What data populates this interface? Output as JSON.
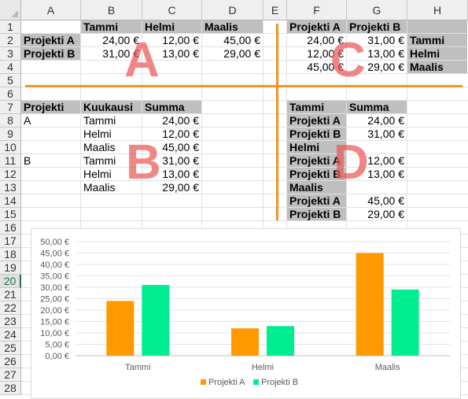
{
  "columns": [
    "A",
    "B",
    "C",
    "D",
    "E",
    "F",
    "G",
    "H"
  ],
  "rows": [
    "1",
    "2",
    "3",
    "4",
    "5",
    "6",
    "7",
    "8",
    "9",
    "10",
    "11",
    "12",
    "13",
    "14",
    "15",
    "16",
    "17",
    "18",
    "19",
    "20",
    "21",
    "22",
    "23",
    "24",
    "25",
    "26",
    "27",
    "28"
  ],
  "active_row": "20",
  "cells": [
    {
      "ref": "B1",
      "text": "Tammi",
      "bold": true,
      "gray": true
    },
    {
      "ref": "C1",
      "text": "Helmi",
      "bold": true,
      "gray": true
    },
    {
      "ref": "D1",
      "text": "Maalis",
      "bold": true,
      "gray": true
    },
    {
      "ref": "A2",
      "text": "Projekti A",
      "bold": true,
      "gray": true
    },
    {
      "ref": "B2",
      "text": "24,00 €",
      "right": true
    },
    {
      "ref": "C2",
      "text": "12,00 €",
      "right": true
    },
    {
      "ref": "D2",
      "text": "45,00 €",
      "right": true
    },
    {
      "ref": "A3",
      "text": "Projekti B",
      "bold": true,
      "gray": true
    },
    {
      "ref": "B3",
      "text": "31,00 €",
      "right": true
    },
    {
      "ref": "C3",
      "text": "13,00 €",
      "right": true
    },
    {
      "ref": "D3",
      "text": "29,00 €",
      "right": true
    },
    {
      "ref": "F1",
      "text": "Projekti A",
      "bold": true,
      "gray": true
    },
    {
      "ref": "G1",
      "text": "Projekti B",
      "bold": true,
      "gray": true
    },
    {
      "ref": "H1",
      "text": "",
      "gray": true
    },
    {
      "ref": "F2",
      "text": "24,00 €",
      "right": true
    },
    {
      "ref": "G2",
      "text": "31,00 €",
      "right": true
    },
    {
      "ref": "H2",
      "text": "Tammi",
      "bold": true,
      "gray": true
    },
    {
      "ref": "F3",
      "text": "12,00 €",
      "right": true
    },
    {
      "ref": "G3",
      "text": "13,00 €",
      "right": true
    },
    {
      "ref": "H3",
      "text": "Helmi",
      "bold": true,
      "gray": true
    },
    {
      "ref": "F4",
      "text": "45,00 €",
      "right": true
    },
    {
      "ref": "G4",
      "text": "29,00 €",
      "right": true
    },
    {
      "ref": "H4",
      "text": "Maalis",
      "bold": true,
      "gray": true
    },
    {
      "ref": "A7",
      "text": "Projekti",
      "bold": true,
      "gray": true
    },
    {
      "ref": "B7",
      "text": "Kuukausi",
      "bold": true,
      "gray": true
    },
    {
      "ref": "C7",
      "text": "Summa",
      "bold": true,
      "gray": true
    },
    {
      "ref": "A8",
      "text": "A"
    },
    {
      "ref": "B8",
      "text": "Tammi"
    },
    {
      "ref": "C8",
      "text": "24,00 €",
      "right": true
    },
    {
      "ref": "B9",
      "text": "Helmi"
    },
    {
      "ref": "C9",
      "text": "12,00 €",
      "right": true
    },
    {
      "ref": "B10",
      "text": "Maalis"
    },
    {
      "ref": "C10",
      "text": "45,00 €",
      "right": true
    },
    {
      "ref": "A11",
      "text": "B"
    },
    {
      "ref": "B11",
      "text": "Tammi"
    },
    {
      "ref": "C11",
      "text": "31,00 €",
      "right": true
    },
    {
      "ref": "B12",
      "text": "Helmi"
    },
    {
      "ref": "C12",
      "text": "13,00 €",
      "right": true
    },
    {
      "ref": "B13",
      "text": "Maalis"
    },
    {
      "ref": "C13",
      "text": "29,00 €",
      "right": true
    },
    {
      "ref": "F7",
      "text": "Tammi",
      "bold": true,
      "gray": true
    },
    {
      "ref": "G7",
      "text": "Summa",
      "bold": true,
      "gray": true
    },
    {
      "ref": "F8",
      "text": "Projekti A",
      "bold": true,
      "gray": true
    },
    {
      "ref": "G8",
      "text": "24,00 €",
      "right": true
    },
    {
      "ref": "F9",
      "text": "Projekti B",
      "bold": true,
      "gray": true
    },
    {
      "ref": "G9",
      "text": "31,00 €",
      "right": true
    },
    {
      "ref": "F10",
      "text": "Helmi",
      "bold": true,
      "gray": true
    },
    {
      "ref": "F11",
      "text": "Projekti A",
      "bold": true,
      "gray": true
    },
    {
      "ref": "G11",
      "text": "12,00 €",
      "right": true
    },
    {
      "ref": "F12",
      "text": "Projekti B",
      "bold": true,
      "gray": true
    },
    {
      "ref": "G12",
      "text": "13,00 €",
      "right": true
    },
    {
      "ref": "F13",
      "text": "Maalis",
      "bold": true,
      "gray": true
    },
    {
      "ref": "F14",
      "text": "Projekti A",
      "bold": true,
      "gray": true
    },
    {
      "ref": "G14",
      "text": "45,00 €",
      "right": true
    },
    {
      "ref": "F15",
      "text": "Projekti B",
      "bold": true,
      "gray": true
    },
    {
      "ref": "G15",
      "text": "29,00 €",
      "right": true
    }
  ],
  "section_labels": [
    "A",
    "B",
    "C",
    "D"
  ],
  "divider_color": "#f7941d",
  "chart_data": {
    "type": "bar",
    "categories": [
      "Tammi",
      "Helmi",
      "Maalis"
    ],
    "series": [
      {
        "name": "Projekti A",
        "values": [
          24,
          12,
          45
        ],
        "color": "#ff9900"
      },
      {
        "name": "Projekti B",
        "values": [
          31,
          13,
          29
        ],
        "color": "#00ee90"
      }
    ],
    "ylim": [
      0,
      50
    ],
    "ytick_step": 5,
    "ytick_labels": [
      "0,00 €",
      "5,00 €",
      "10,00 €",
      "15,00 €",
      "20,00 €",
      "25,00 €",
      "30,00 €",
      "35,00 €",
      "40,00 €",
      "45,00 €",
      "50,00 €"
    ],
    "grid": true,
    "legend": "bottom"
  }
}
